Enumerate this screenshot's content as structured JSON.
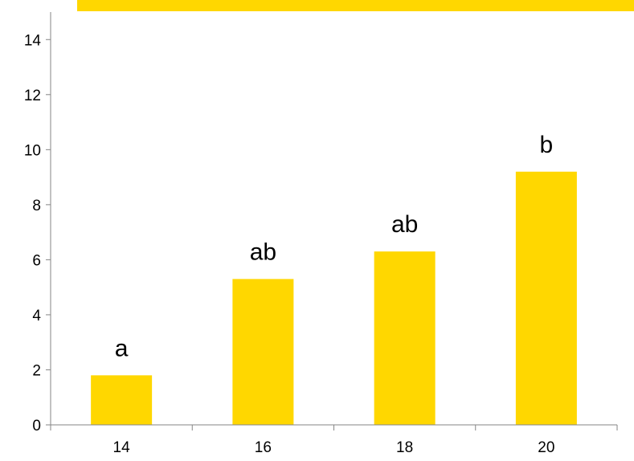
{
  "chart_data": {
    "type": "bar",
    "categories": [
      "14",
      "16",
      "18",
      "20"
    ],
    "values": [
      1.8,
      5.3,
      6.3,
      9.2
    ],
    "data_labels": [
      "a",
      "ab",
      "ab",
      "b"
    ],
    "ylim": [
      0,
      15
    ],
    "yticks": [
      "0",
      "2",
      "4",
      "6",
      "8",
      "10",
      "12",
      "14"
    ],
    "xlabel": "",
    "ylabel": "",
    "grid": false,
    "legend": "none",
    "colors": {
      "bar": "#FFD700",
      "axis": "#868686",
      "text": "#000000",
      "top_band": "#FFD700"
    }
  }
}
